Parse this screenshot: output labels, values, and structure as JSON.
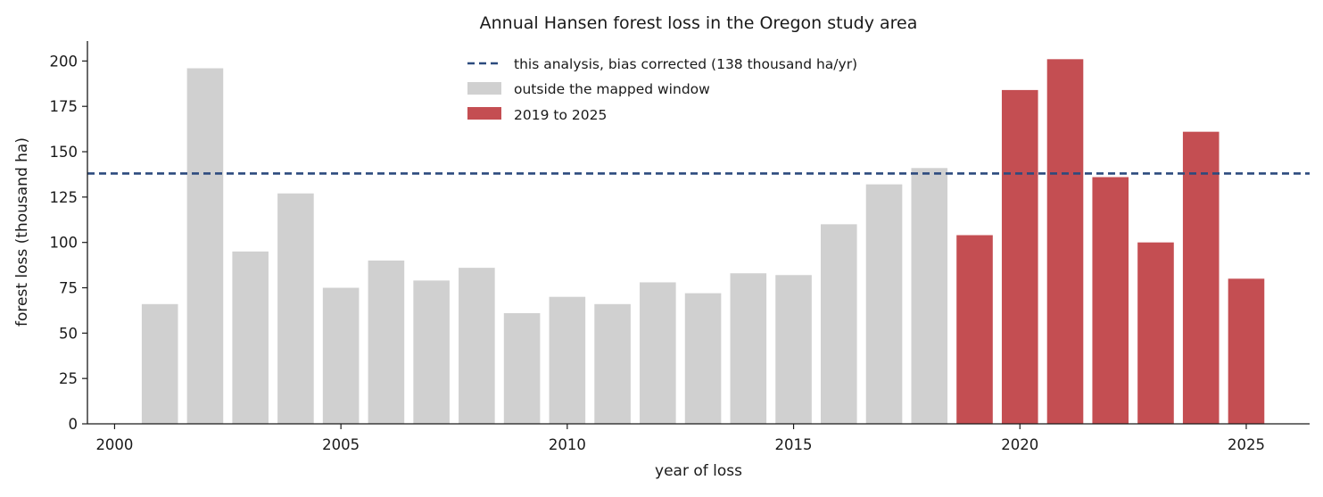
{
  "chart_data": {
    "type": "bar",
    "title": "Annual Hansen forest loss in the Oregon study area",
    "xlabel": "year of loss",
    "ylabel": "forest loss (thousand ha)",
    "xlim": [
      1999.4,
      2026.4
    ],
    "ylim": [
      0,
      211
    ],
    "xticks": [
      2000,
      2005,
      2010,
      2015,
      2020,
      2025
    ],
    "yticks": [
      0,
      25,
      50,
      75,
      100,
      125,
      150,
      175,
      200
    ],
    "grid": false,
    "legend_position": "top-center",
    "colors": {
      "outside": "#d0d0d0",
      "window": "#c44e52",
      "reference": "#2c4a7e"
    },
    "series": [
      {
        "name": "outside the mapped window",
        "color": "#d0d0d0",
        "x": [
          2001,
          2002,
          2003,
          2004,
          2005,
          2006,
          2007,
          2008,
          2009,
          2010,
          2011,
          2012,
          2013,
          2014,
          2015,
          2016,
          2017,
          2018
        ],
        "values": [
          66,
          196,
          95,
          127,
          75,
          90,
          79,
          86,
          61,
          70,
          66,
          78,
          72,
          83,
          82,
          110,
          132,
          141
        ]
      },
      {
        "name": "2019 to 2025",
        "color": "#c44e52",
        "x": [
          2019,
          2020,
          2021,
          2022,
          2023,
          2024,
          2025
        ],
        "values": [
          104,
          184,
          201,
          136,
          100,
          161,
          80
        ]
      }
    ],
    "reference_line": {
      "name": "this analysis, bias corrected (138 thousand ha/yr)",
      "value": 138,
      "style": "dashed",
      "color": "#2c4a7e"
    }
  }
}
